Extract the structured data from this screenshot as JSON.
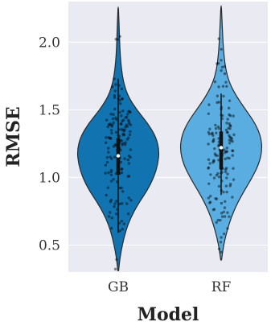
{
  "chart_data": {
    "type": "violin",
    "xlabel": "Model",
    "ylabel": "RMSE",
    "ylim": [
      0.3,
      2.3
    ],
    "yticks": [
      0.5,
      1.0,
      1.5,
      2.0
    ],
    "ytick_labels": [
      "0.5",
      "1.0",
      "1.5",
      "2.0"
    ],
    "grid": true,
    "background": "#eaeaf2",
    "categories": [
      "GB",
      "RF"
    ],
    "series": [
      {
        "category": "GB",
        "color": "#1173b0",
        "min": 0.31,
        "max": 2.26,
        "median": 1.16,
        "q1": 1.02,
        "q3": 1.29,
        "whisker_low": 0.59,
        "whisker_high": 1.73,
        "density": [
          [
            0.31,
            0.01
          ],
          [
            0.4,
            0.04
          ],
          [
            0.5,
            0.1
          ],
          [
            0.6,
            0.18
          ],
          [
            0.7,
            0.3
          ],
          [
            0.8,
            0.48
          ],
          [
            0.9,
            0.7
          ],
          [
            1.0,
            0.87
          ],
          [
            1.1,
            0.97
          ],
          [
            1.2,
            1.0
          ],
          [
            1.3,
            0.92
          ],
          [
            1.4,
            0.72
          ],
          [
            1.5,
            0.45
          ],
          [
            1.6,
            0.24
          ],
          [
            1.7,
            0.13
          ],
          [
            1.8,
            0.08
          ],
          [
            1.9,
            0.05
          ],
          [
            2.0,
            0.035
          ],
          [
            2.1,
            0.025
          ],
          [
            2.2,
            0.012
          ],
          [
            2.26,
            0.005
          ]
        ]
      },
      {
        "category": "RF",
        "color": "#5aade0",
        "min": 0.39,
        "max": 2.27,
        "median": 1.22,
        "q1": 1.06,
        "q3": 1.34,
        "whisker_low": 0.87,
        "whisker_high": 1.62,
        "density": [
          [
            0.39,
            0.01
          ],
          [
            0.5,
            0.06
          ],
          [
            0.6,
            0.14
          ],
          [
            0.7,
            0.24
          ],
          [
            0.8,
            0.38
          ],
          [
            0.9,
            0.56
          ],
          [
            1.0,
            0.76
          ],
          [
            1.1,
            0.92
          ],
          [
            1.2,
            1.0
          ],
          [
            1.3,
            0.97
          ],
          [
            1.4,
            0.83
          ],
          [
            1.5,
            0.6
          ],
          [
            1.6,
            0.37
          ],
          [
            1.7,
            0.2
          ],
          [
            1.8,
            0.11
          ],
          [
            1.9,
            0.07
          ],
          [
            2.0,
            0.045
          ],
          [
            2.1,
            0.03
          ],
          [
            2.2,
            0.015
          ],
          [
            2.27,
            0.005
          ]
        ]
      }
    ]
  }
}
